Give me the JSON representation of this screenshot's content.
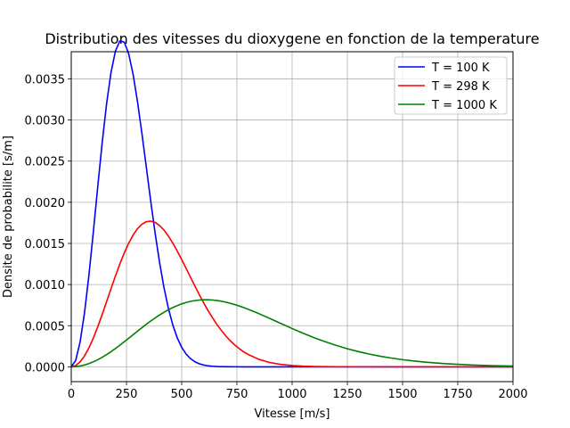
{
  "chart_data": {
    "type": "line",
    "title": "Distribution des vitesses du dioxygene en fonction de la temperature",
    "xlabel": "Vitesse [m/s]",
    "ylabel": "Densite de probabilite [s/m]",
    "xlim": [
      0,
      2000
    ],
    "ylim": [
      -0.00018,
      0.00383
    ],
    "xticks": [
      0,
      250,
      500,
      750,
      1000,
      1250,
      1500,
      1750,
      2000
    ],
    "xtick_labels": [
      "0",
      "250",
      "500",
      "750",
      "1000",
      "1250",
      "1500",
      "1750",
      "2000"
    ],
    "yticks": [
      0,
      0.0005,
      0.001,
      0.0015,
      0.002,
      0.0025,
      0.003,
      0.0035
    ],
    "ytick_labels": [
      "0.0000",
      "0.0005",
      "0.0010",
      "0.0015",
      "0.0020",
      "0.0025",
      "0.0030",
      "0.0035"
    ],
    "grid": true,
    "legend_position": "top-right",
    "x": [
      0,
      20,
      40,
      60,
      80,
      100,
      120,
      140,
      160,
      180,
      200,
      220,
      240,
      260,
      280,
      300,
      320,
      340,
      360,
      380,
      400,
      420,
      440,
      460,
      480,
      500,
      520,
      540,
      560,
      580,
      600,
      620,
      640,
      660,
      680,
      700,
      720,
      740,
      760,
      780,
      800,
      850,
      900,
      950,
      1000,
      1050,
      1100,
      1150,
      1200,
      1250,
      1300,
      1350,
      1400,
      1450,
      1500,
      1550,
      1600,
      1650,
      1700,
      1750,
      1800,
      1850,
      1900,
      1950,
      2000
    ],
    "series": [
      {
        "name": "T = 100 K",
        "color": "#0000ff",
        "values": [
          0,
          7.68e-05,
          0.0003012,
          0.0006563,
          0.001114,
          0.001639,
          0.00219,
          0.002723,
          0.003198,
          0.003578,
          0.003837,
          0.003961,
          0.003947,
          0.003805,
          0.003555,
          0.003222,
          0.002835,
          0.002423,
          0.002011,
          0.00162,
          0.001266,
          0.0009606,
          0.0007077,
          0.0005062,
          0.0003516,
          0.0002372,
          0.0001555,
          9.9e-05,
          6.13e-05,
          3.69e-05,
          2.15e-05,
          1.22e-05,
          6.8e-06,
          3.6e-06,
          1.9e-06,
          1e-06,
          5e-07,
          2e-07,
          1e-07,
          0,
          0,
          0,
          0,
          0,
          0,
          0,
          0,
          0,
          0,
          0,
          0,
          0,
          0,
          0,
          0,
          0,
          0,
          0,
          0,
          0,
          0,
          0,
          0,
          0,
          0
        ]
      },
      {
        "name": "T = 298 K",
        "color": "#ff0000",
        "values": [
          0,
          1.5e-05,
          5.96e-05,
          0.0001324,
          0.0002306,
          0.0003503,
          0.0004871,
          0.0006361,
          0.0007921,
          0.0009497,
          0.001104,
          0.00125,
          0.001384,
          0.001502,
          0.001602,
          0.001679,
          0.001734,
          0.001764,
          0.001771,
          0.001755,
          0.001717,
          0.001661,
          0.001588,
          0.001502,
          0.001406,
          0.001303,
          0.001197,
          0.001088,
          0.000981,
          0.000876,
          0.000775,
          0.000681,
          0.000594,
          0.000513,
          0.00044,
          0.000375,
          0.000317,
          0.000266,
          0.000222,
          0.000184,
          0.000152,
          9.03e-05,
          5.19e-05,
          2.88e-05,
          1.55e-05,
          8e-06,
          4e-06,
          2e-06,
          9e-07,
          4e-07,
          2e-07,
          1e-07,
          0,
          0,
          0,
          0,
          0,
          0,
          0,
          0,
          0,
          0,
          0,
          0,
          0
        ]
      },
      {
        "name": "T = 1000 K",
        "color": "#008000",
        "values": [
          0,
          2.5e-06,
          9.9e-06,
          2.22e-05,
          3.92e-05,
          6.06e-05,
          8.62e-05,
          0.0001156,
          0.0001484,
          0.0001842,
          0.0002225,
          0.0002628,
          0.0003046,
          0.0003474,
          0.0003906,
          0.0004336,
          0.0004761,
          0.0005174,
          0.0005572,
          0.0005951,
          0.0006307,
          0.0006637,
          0.0006938,
          0.0007208,
          0.0007446,
          0.0007649,
          0.0007818,
          0.0007952,
          0.0008051,
          0.0008116,
          0.0008148,
          0.0008147,
          0.0008116,
          0.0008056,
          0.000797,
          0.0007858,
          0.0007724,
          0.0007569,
          0.0007397,
          0.0007209,
          0.0007008,
          0.0006458,
          0.0005866,
          0.0005258,
          0.0004657,
          0.0004081,
          0.0003541,
          0.0003045,
          0.0002598,
          0.0002199,
          0.0001849,
          0.0001544,
          0.0001282,
          0.0001058,
          8.68e-05,
          7.09e-05,
          5.76e-05,
          4.66e-05,
          3.75e-05,
          3.01e-05,
          2.4e-05,
          1.91e-05,
          1.51e-05,
          1.19e-05,
          9.3e-06
        ]
      }
    ]
  }
}
